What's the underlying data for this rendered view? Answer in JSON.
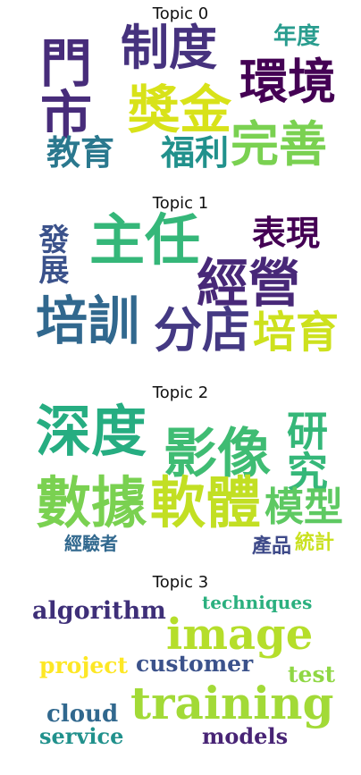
{
  "chart_data": {
    "type": "wordcloud",
    "panels": [
      {
        "title": "Topic 0",
        "words": [
          {
            "text": "門市",
            "color": "#472c7a"
          },
          {
            "text": "制度",
            "color": "#46327e"
          },
          {
            "text": "年度",
            "color": "#2a9d8f"
          },
          {
            "text": "環境",
            "color": "#440154"
          },
          {
            "text": "獎金",
            "color": "#d8e219"
          },
          {
            "text": "教育",
            "color": "#2a788e"
          },
          {
            "text": "福利",
            "color": "#21918c"
          },
          {
            "text": "完善",
            "color": "#7ad151"
          }
        ]
      },
      {
        "title": "Topic 1",
        "words": [
          {
            "text": "發展",
            "color": "#3b528b"
          },
          {
            "text": "主任",
            "color": "#35b779"
          },
          {
            "text": "表現",
            "color": "#440154"
          },
          {
            "text": "經營",
            "color": "#482878"
          },
          {
            "text": "培訓",
            "color": "#31688e"
          },
          {
            "text": "分店",
            "color": "#443983"
          },
          {
            "text": "培育",
            "color": "#cde11d"
          }
        ]
      },
      {
        "title": "Topic 2",
        "words": [
          {
            "text": "深度",
            "color": "#26ad81"
          },
          {
            "text": "影像",
            "color": "#3fbc73"
          },
          {
            "text": "研究",
            "color": "#35b779"
          },
          {
            "text": "數據",
            "color": "#7ad151"
          },
          {
            "text": "軟體",
            "color": "#c2df23"
          },
          {
            "text": "模型",
            "color": "#5ec962"
          },
          {
            "text": "經驗者",
            "color": "#31688e"
          },
          {
            "text": "產品",
            "color": "#3e4a89"
          },
          {
            "text": "統計",
            "color": "#cae11f"
          }
        ]
      },
      {
        "title": "Topic 3",
        "words": [
          {
            "text": "algorithm",
            "color": "#3e2f78"
          },
          {
            "text": "techniques",
            "color": "#2bb07f"
          },
          {
            "text": "image",
            "color": "#b5de2b"
          },
          {
            "text": "project",
            "color": "#fde725"
          },
          {
            "text": "customer",
            "color": "#3b528b"
          },
          {
            "text": "test",
            "color": "#8fd744"
          },
          {
            "text": "training",
            "color": "#a2da37"
          },
          {
            "text": "cloud",
            "color": "#31688e"
          },
          {
            "text": "service",
            "color": "#21918c"
          },
          {
            "text": "models",
            "color": "#482475"
          }
        ]
      }
    ]
  }
}
